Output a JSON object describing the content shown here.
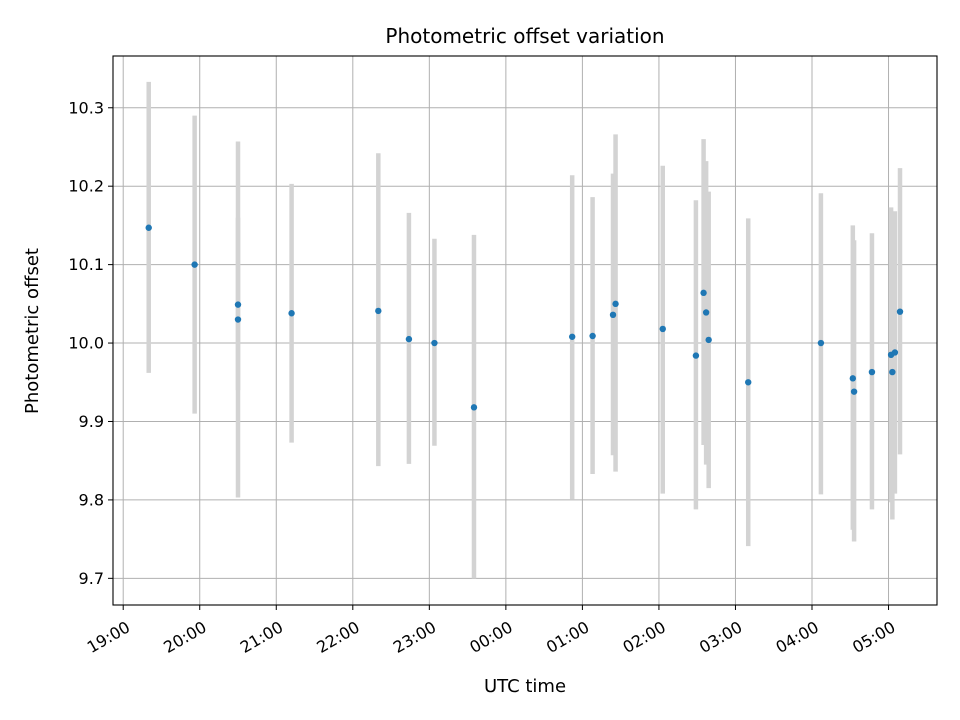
{
  "chart_data": {
    "type": "scatter",
    "title": "Photometric offset variation",
    "xlabel": "UTC time",
    "ylabel": "Photometric offset",
    "grid": true,
    "x_axis": {
      "kind": "time",
      "range": [
        "18:52",
        "05:38"
      ],
      "ticks": [
        "19:00",
        "20:00",
        "21:00",
        "22:00",
        "23:00",
        "00:00",
        "01:00",
        "02:00",
        "03:00",
        "04:00",
        "05:00"
      ]
    },
    "y_axis": {
      "range": [
        9.666,
        10.366
      ],
      "ticks": [
        "9.7",
        "9.8",
        "9.9",
        "10.0",
        "10.1",
        "10.2",
        "10.3"
      ]
    },
    "points": [
      {
        "t": "19:20",
        "y": 10.147,
        "err_low": 9.962,
        "err_high": 10.333
      },
      {
        "t": "19:56",
        "y": 10.1,
        "err_low": 9.91,
        "err_high": 10.29
      },
      {
        "t": "20:30",
        "y": 10.03,
        "err_low": 9.803,
        "err_high": 10.257
      },
      {
        "t": "20:30",
        "y": 10.049,
        "err_low": 9.94,
        "err_high": 10.16
      },
      {
        "t": "21:12",
        "y": 10.038,
        "err_low": 9.873,
        "err_high": 10.203
      },
      {
        "t": "22:20",
        "y": 10.041,
        "err_low": 9.843,
        "err_high": 10.242
      },
      {
        "t": "22:44",
        "y": 10.005,
        "err_low": 9.846,
        "err_high": 10.166
      },
      {
        "t": "23:04",
        "y": 10.0,
        "err_low": 9.869,
        "err_high": 10.133
      },
      {
        "t": "23:35",
        "y": 9.918,
        "err_low": 9.7,
        "err_high": 10.138
      },
      {
        "t": "00:52",
        "y": 10.008,
        "err_low": 9.801,
        "err_high": 10.214
      },
      {
        "t": "01:08",
        "y": 10.009,
        "err_low": 9.833,
        "err_high": 10.186
      },
      {
        "t": "01:24",
        "y": 10.036,
        "err_low": 9.857,
        "err_high": 10.216
      },
      {
        "t": "01:26",
        "y": 10.05,
        "err_low": 9.836,
        "err_high": 10.266
      },
      {
        "t": "02:03",
        "y": 10.018,
        "err_low": 9.808,
        "err_high": 10.226
      },
      {
        "t": "02:29",
        "y": 9.984,
        "err_low": 9.788,
        "err_high": 10.182
      },
      {
        "t": "02:35",
        "y": 10.064,
        "err_low": 9.87,
        "err_high": 10.26
      },
      {
        "t": "02:37",
        "y": 10.039,
        "err_low": 9.845,
        "err_high": 10.232
      },
      {
        "t": "02:39",
        "y": 10.004,
        "err_low": 9.815,
        "err_high": 10.193
      },
      {
        "t": "03:10",
        "y": 9.95,
        "err_low": 9.741,
        "err_high": 10.159
      },
      {
        "t": "04:07",
        "y": 10.0,
        "err_low": 9.807,
        "err_high": 10.191
      },
      {
        "t": "04:32",
        "y": 9.955,
        "err_low": 9.762,
        "err_high": 10.15
      },
      {
        "t": "04:33",
        "y": 9.938,
        "err_low": 9.747,
        "err_high": 10.131
      },
      {
        "t": "04:47",
        "y": 9.963,
        "err_low": 9.788,
        "err_high": 10.14
      },
      {
        "t": "05:02",
        "y": 9.985,
        "err_low": 9.797,
        "err_high": 10.173
      },
      {
        "t": "05:03",
        "y": 9.963,
        "err_low": 9.775,
        "err_high": 10.15
      },
      {
        "t": "05:05",
        "y": 9.988,
        "err_low": 9.808,
        "err_high": 10.168
      },
      {
        "t": "05:09",
        "y": 10.04,
        "err_low": 9.858,
        "err_high": 10.223
      }
    ],
    "colors": {
      "marker": "#1f77b4",
      "errorbar": "#d3d3d3",
      "grid": "#b0b0b0",
      "axes": "#000000"
    }
  }
}
